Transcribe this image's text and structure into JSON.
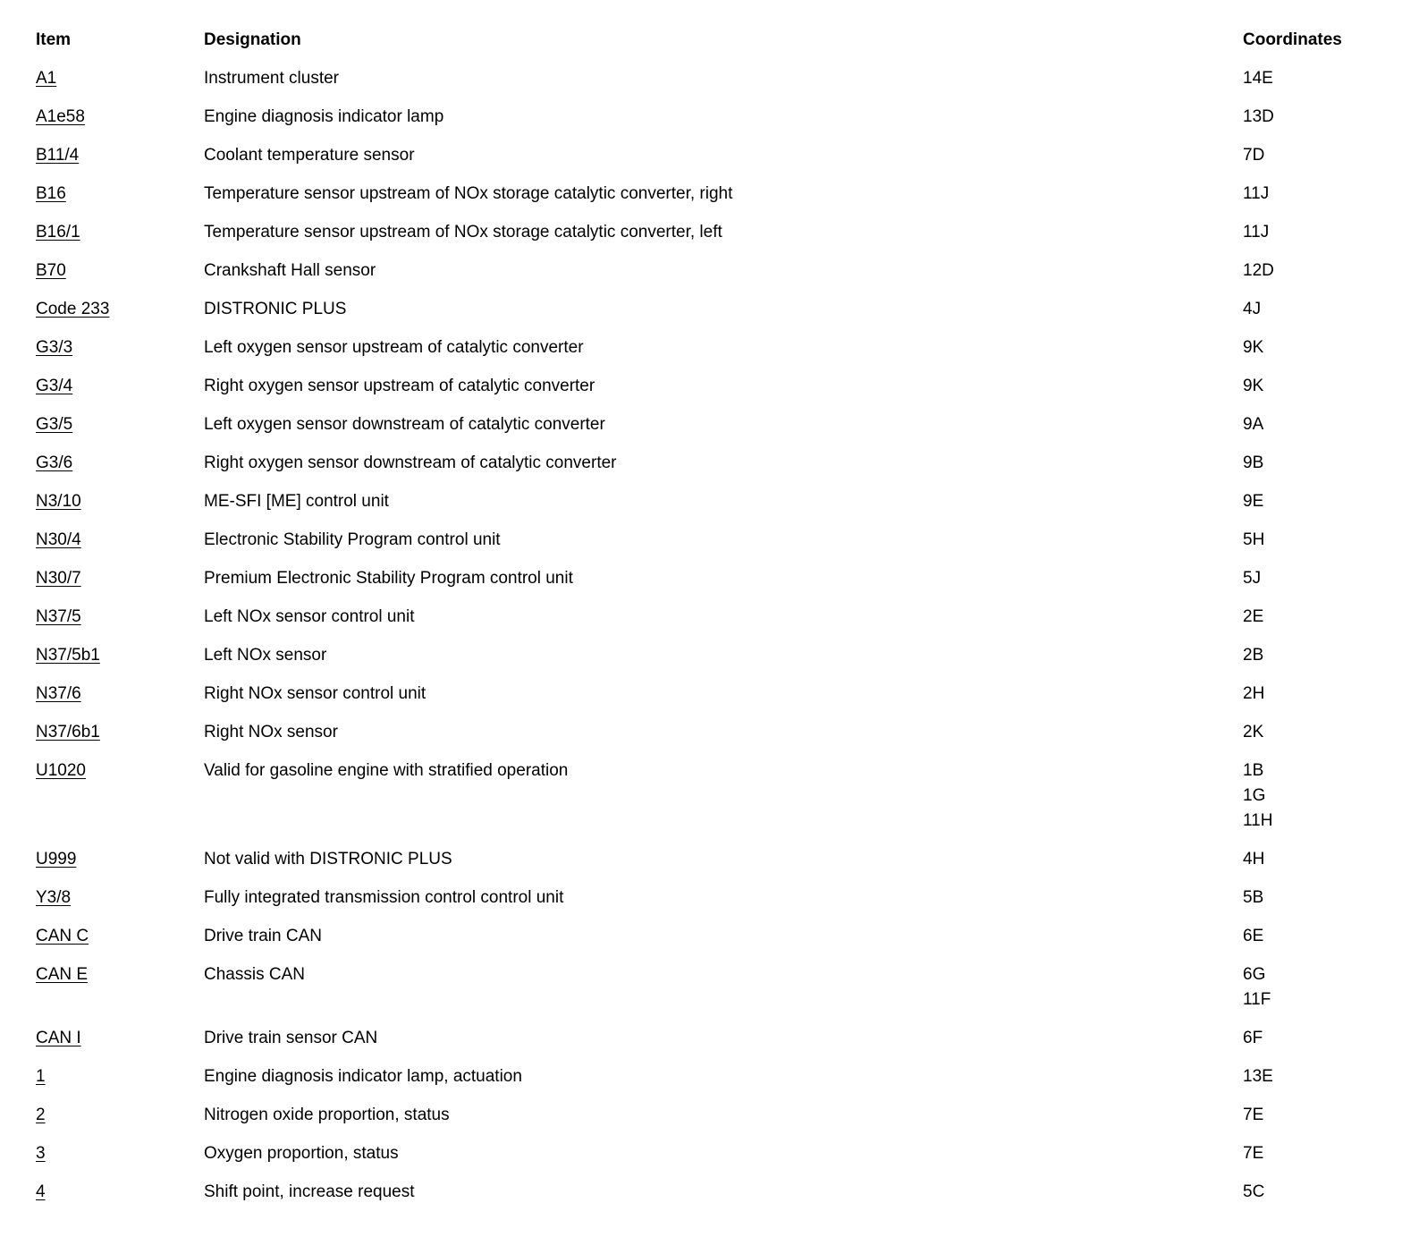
{
  "table": {
    "headers": {
      "item": "Item",
      "designation": "Designation",
      "coordinates": "Coordinates"
    },
    "rows": [
      {
        "item": "A1",
        "designation": "Instrument cluster",
        "coordinates": [
          "14E"
        ]
      },
      {
        "item": "A1e58",
        "designation": "Engine diagnosis indicator lamp",
        "coordinates": [
          "13D"
        ]
      },
      {
        "item": "B11/4",
        "designation": "Coolant temperature sensor",
        "coordinates": [
          "7D"
        ]
      },
      {
        "item": "B16",
        "designation": "Temperature sensor upstream of NOx storage catalytic converter, right",
        "coordinates": [
          "11J"
        ]
      },
      {
        "item": "B16/1",
        "designation": "Temperature sensor upstream of NOx storage catalytic converter, left",
        "coordinates": [
          "11J"
        ]
      },
      {
        "item": "B70",
        "designation": "Crankshaft Hall sensor",
        "coordinates": [
          "12D"
        ]
      },
      {
        "item": "Code 233",
        "designation": "DISTRONIC PLUS",
        "coordinates": [
          "4J"
        ]
      },
      {
        "item": "G3/3",
        "designation": "Left oxygen sensor upstream of catalytic converter",
        "coordinates": [
          "9K"
        ]
      },
      {
        "item": "G3/4",
        "designation": "Right oxygen sensor upstream of catalytic converter",
        "coordinates": [
          "9K"
        ]
      },
      {
        "item": "G3/5",
        "designation": "Left oxygen sensor downstream of catalytic converter",
        "coordinates": [
          "9A"
        ]
      },
      {
        "item": "G3/6",
        "designation": "Right oxygen sensor downstream of catalytic converter",
        "coordinates": [
          "9B"
        ]
      },
      {
        "item": "N3/10",
        "designation": "ME-SFI [ME] control unit",
        "coordinates": [
          "9E"
        ]
      },
      {
        "item": "N30/4",
        "designation": "Electronic Stability Program control unit",
        "coordinates": [
          "5H"
        ]
      },
      {
        "item": "N30/7",
        "designation": "Premium Electronic Stability Program control unit",
        "coordinates": [
          "5J"
        ]
      },
      {
        "item": "N37/5",
        "designation": "Left NOx sensor control unit",
        "coordinates": [
          "2E"
        ]
      },
      {
        "item": "N37/5b1",
        "designation": "Left NOx sensor",
        "coordinates": [
          "2B"
        ]
      },
      {
        "item": "N37/6",
        "designation": "Right NOx sensor control unit",
        "coordinates": [
          "2H"
        ]
      },
      {
        "item": "N37/6b1",
        "designation": "Right NOx sensor",
        "coordinates": [
          "2K"
        ]
      },
      {
        "item": "U1020",
        "designation": "Valid for gasoline engine with stratified operation",
        "coordinates": [
          "1B",
          "1G",
          "11H"
        ]
      },
      {
        "item": "U999",
        "designation": "Not valid with DISTRONIC PLUS",
        "coordinates": [
          "4H"
        ]
      },
      {
        "item": "Y3/8",
        "designation": "Fully integrated transmission control control unit",
        "coordinates": [
          "5B"
        ]
      },
      {
        "item": "CAN C",
        "designation": "Drive train CAN",
        "coordinates": [
          "6E"
        ]
      },
      {
        "item": "CAN E",
        "designation": "Chassis CAN",
        "coordinates": [
          "6G",
          "11F"
        ]
      },
      {
        "item": "CAN I",
        "designation": "Drive train sensor CAN",
        "coordinates": [
          "6F"
        ]
      },
      {
        "item": "1",
        "designation": "Engine diagnosis indicator lamp, actuation",
        "coordinates": [
          "13E"
        ]
      },
      {
        "item": "2",
        "designation": "Nitrogen oxide proportion, status",
        "coordinates": [
          "7E"
        ]
      },
      {
        "item": "3",
        "designation": "Oxygen proportion, status",
        "coordinates": [
          "7E"
        ]
      },
      {
        "item": "4",
        "designation": "Shift point, increase request",
        "coordinates": [
          "5C"
        ]
      }
    ]
  }
}
